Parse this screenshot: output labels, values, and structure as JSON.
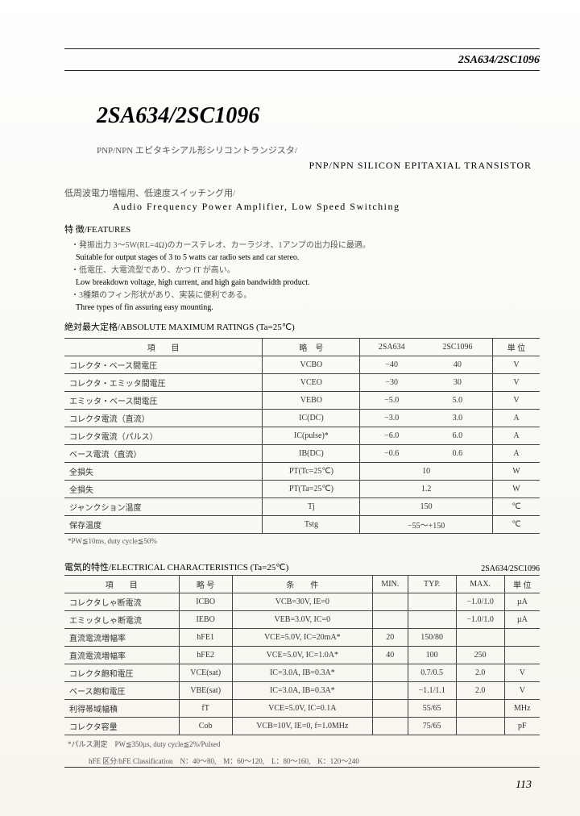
{
  "header": {
    "part_number": "2SA634/2SC1096"
  },
  "title": "2SA634/2SC1096",
  "subtitle": {
    "jp": "PNP/NPN エピタキシアル形シリコントランジスタ/",
    "en": "PNP/NPN SILICON EPITAXIAL TRANSISTOR"
  },
  "application": {
    "jp": "低周波電力増幅用、低速度スイッチング用/",
    "en": "Audio Frequency Power Amplifier, Low Speed Switching"
  },
  "features": {
    "heading": "特 徴/FEATURES",
    "items": [
      {
        "jp": "・発振出力 3～5W(RL=4Ω)のカーステレオ、カーラジオ、1アンプの出力段に最適。",
        "en": "Suitable for output stages of 3 to 5 watts car radio sets and car stereo."
      },
      {
        "jp": "・低電圧、大電流型であり、かつ fT が高い。",
        "en": "Low breakdown voltage, high current, and high gain bandwidth product."
      },
      {
        "jp": "・3種類のフィン形状があり、実装に便利である。",
        "en": "Three types of fin assuring easy mounting."
      }
    ]
  },
  "abs_max": {
    "heading": "絶対最大定格/ABSOLUTE MAXIMUM RATINGS (Ta=25℃)",
    "columns": [
      "項　　目",
      "略　号",
      "2SA634",
      "2SC1096",
      "単 位"
    ],
    "rows": [
      [
        "コレクタ・ベース間電圧",
        "VCBO",
        "−40",
        "40",
        "V"
      ],
      [
        "コレクタ・エミッタ間電圧",
        "VCEO",
        "−30",
        "30",
        "V"
      ],
      [
        "エミッタ・ベース間電圧",
        "VEBO",
        "−5.0",
        "5.0",
        "V"
      ],
      [
        "コレクタ電流（直流）",
        "IC(DC)",
        "−3.0",
        "3.0",
        "A"
      ],
      [
        "コレクタ電流（パルス）",
        "IC(pulse)*",
        "−6.0",
        "6.0",
        "A"
      ],
      [
        "ベース電流（直流）",
        "IB(DC)",
        "−0.6",
        "0.6",
        "A"
      ],
      [
        "全損失",
        "PT(Tc=25℃)",
        "10",
        "",
        "W"
      ],
      [
        "全損失",
        "PT(Ta=25℃)",
        "1.2",
        "",
        "W"
      ],
      [
        "ジャンクション温度",
        "Tj",
        "150",
        "",
        "℃"
      ],
      [
        "保存温度",
        "Tstg",
        "−55～+150",
        "",
        "℃"
      ]
    ],
    "note": "*PW≦10ms, duty cycle≦50%"
  },
  "elec": {
    "heading": "電気的特性/ELECTRICAL CHARACTERISTICS (Ta=25℃)",
    "partno": "2SA634/2SC1096",
    "columns": [
      "項　　目",
      "略 号",
      "条　　件",
      "MIN.",
      "TYP.",
      "MAX.",
      "単 位"
    ],
    "rows": [
      [
        "コレクタしゃ断電流",
        "ICBO",
        "VCB=30V, IE=0",
        "",
        "",
        "−1.0/1.0",
        "µA"
      ],
      [
        "エミッタしゃ断電流",
        "IEBO",
        "VEB=3.0V, IC=0",
        "",
        "",
        "−1.0/1.0",
        "µA"
      ],
      [
        "直流電流増幅率",
        "hFE1",
        "VCE=5.0V, IC=20mA*",
        "20",
        "150/80",
        "",
        ""
      ],
      [
        "直流電流増幅率",
        "hFE2",
        "VCE=5.0V, IC=1.0A*",
        "40",
        "100",
        "250",
        ""
      ],
      [
        "コレクタ飽和電圧",
        "VCE(sat)",
        "IC=3.0A, IB=0.3A*",
        "",
        "0.7/0.5",
        "2.0",
        "V"
      ],
      [
        "ベース飽和電圧",
        "VBE(sat)",
        "IC=3.0A, IB=0.3A*",
        "",
        "−1.1/1.1",
        "2.0",
        "V"
      ],
      [
        "利得帯域幅積",
        "fT",
        "VCE=5.0V, IC=0.1A",
        "",
        "55/65",
        "",
        "MHz"
      ],
      [
        "コレクタ容量",
        "Cob",
        "VCB=10V, IE=0, f=1.0MHz",
        "",
        "75/65",
        "",
        "pF"
      ]
    ],
    "note1": "*パルス測定　PW≦350µs, duty cycle≦2%/Pulsed",
    "note2": "hFE 区分/hFE Classification　N：40～80,　M：60～120,　L：80～160,　K：120～240"
  },
  "page_number": "113"
}
